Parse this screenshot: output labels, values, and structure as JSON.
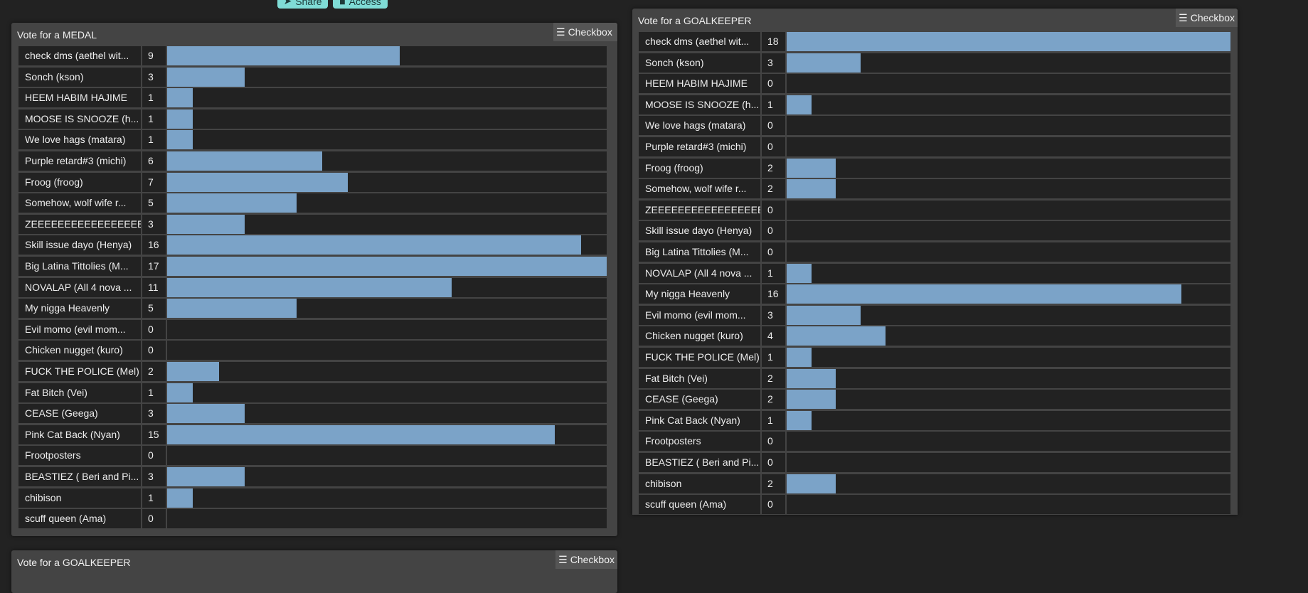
{
  "top_buttons": {
    "share": "Share",
    "access": "Access"
  },
  "colors": {
    "bar": "#7ba3c8",
    "accent": "#7fdcd6"
  },
  "medal": {
    "title": "Vote for a MEDAL",
    "mode_button": "Checkbox",
    "max": 17,
    "items": [
      {
        "name": "check dms (aethel wit...",
        "votes": 9
      },
      {
        "name": "Sonch (kson)",
        "votes": 3
      },
      {
        "name": "HEEM HABIM HAJIME",
        "votes": 1
      },
      {
        "name": "MOOSE IS SNOOZE (h...",
        "votes": 1
      },
      {
        "name": "We love hags (matara)",
        "votes": 1
      },
      {
        "name": "Purple retard#3 (michi)",
        "votes": 6
      },
      {
        "name": "Froog (froog)",
        "votes": 7
      },
      {
        "name": "Somehow, wolf wife r...",
        "votes": 5
      },
      {
        "name": "ZEEEEEEEEEEEEEEEEE...",
        "votes": 3
      },
      {
        "name": "Skill issue dayo (Henya)",
        "votes": 16
      },
      {
        "name": "Big Latina Tittolies (M...",
        "votes": 17
      },
      {
        "name": "NOVALAP (All 4 nova ...",
        "votes": 11
      },
      {
        "name": "My nigga Heavenly",
        "votes": 5
      },
      {
        "name": "Evil momo (evil mom...",
        "votes": 0
      },
      {
        "name": "Chicken nugget (kuro)",
        "votes": 0
      },
      {
        "name": "FUCK THE POLICE (Mel)",
        "votes": 2
      },
      {
        "name": "Fat Bitch (Vei)",
        "votes": 1
      },
      {
        "name": "CEASE (Geega)",
        "votes": 3
      },
      {
        "name": "Pink Cat Back (Nyan)",
        "votes": 15
      },
      {
        "name": "Frootposters",
        "votes": 0
      },
      {
        "name": "BEASTIEZ ( Beri and Pi...",
        "votes": 3
      },
      {
        "name": "chibison",
        "votes": 1
      },
      {
        "name": "scuff queen (Ama)",
        "votes": 0
      }
    ]
  },
  "goalkeeper": {
    "title": "Vote for a GOALKEEPER",
    "mode_button": "Checkbox",
    "max": 18,
    "items": [
      {
        "name": "check dms (aethel wit...",
        "votes": 18
      },
      {
        "name": "Sonch (kson)",
        "votes": 3
      },
      {
        "name": "HEEM HABIM HAJIME",
        "votes": 0
      },
      {
        "name": "MOOSE IS SNOOZE (h...",
        "votes": 1
      },
      {
        "name": "We love hags (matara)",
        "votes": 0
      },
      {
        "name": "Purple retard#3 (michi)",
        "votes": 0
      },
      {
        "name": "Froog (froog)",
        "votes": 2
      },
      {
        "name": "Somehow, wolf wife r...",
        "votes": 2
      },
      {
        "name": "ZEEEEEEEEEEEEEEEEE...",
        "votes": 0
      },
      {
        "name": "Skill issue dayo (Henya)",
        "votes": 0
      },
      {
        "name": "Big Latina Tittolies (M...",
        "votes": 0
      },
      {
        "name": "NOVALAP (All 4 nova ...",
        "votes": 1
      },
      {
        "name": "My nigga Heavenly",
        "votes": 16
      },
      {
        "name": "Evil momo (evil mom...",
        "votes": 3
      },
      {
        "name": "Chicken nugget (kuro)",
        "votes": 4
      },
      {
        "name": "FUCK THE POLICE (Mel)",
        "votes": 1
      },
      {
        "name": "Fat Bitch (Vei)",
        "votes": 2
      },
      {
        "name": "CEASE (Geega)",
        "votes": 2
      },
      {
        "name": "Pink Cat Back (Nyan)",
        "votes": 1
      },
      {
        "name": "Frootposters",
        "votes": 0
      },
      {
        "name": "BEASTIEZ ( Beri and Pi...",
        "votes": 0
      },
      {
        "name": "chibison",
        "votes": 2
      },
      {
        "name": "scuff queen (Ama)",
        "votes": 0
      }
    ]
  },
  "goalkeeper_lower": {
    "title": "Vote for a GOALKEEPER",
    "mode_button": "Checkbox"
  }
}
